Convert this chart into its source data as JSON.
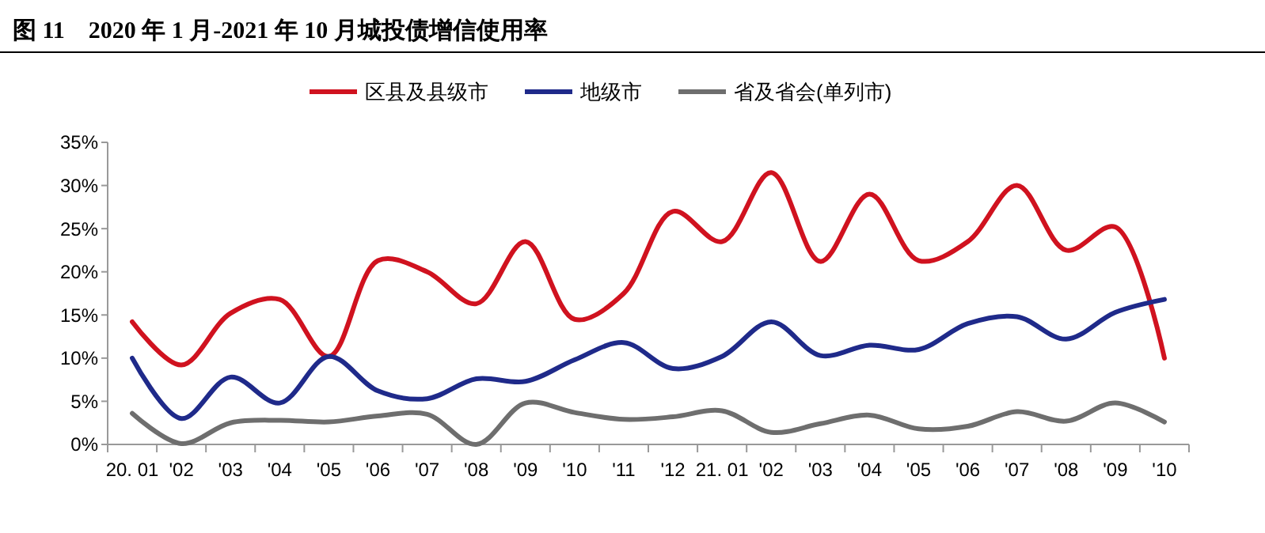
{
  "chart_data": {
    "type": "line",
    "title": "图 11　2020 年 1 月-2021 年 10 月城投债增信使用率",
    "categories": [
      "20. 01",
      "'02",
      "'03",
      "'04",
      "'05",
      "'06",
      "'07",
      "'08",
      "'09",
      "'10",
      "'11",
      "'12",
      "21. 01",
      "'02",
      "'03",
      "'04",
      "'05",
      "'06",
      "'07",
      "'08",
      "'09",
      "'10"
    ],
    "series": [
      {
        "name": "区县及县级市",
        "color": "#d0121f",
        "values": [
          14.2,
          9.2,
          15.2,
          16.8,
          10.2,
          21.3,
          20,
          16.3,
          23.5,
          14.5,
          17.5,
          27,
          23.5,
          31.5,
          21.2,
          29,
          21.3,
          23.5,
          30,
          22.5,
          25.2,
          10
        ]
      },
      {
        "name": "地级市",
        "color": "#1f2a8a",
        "values": [
          10,
          3,
          7.8,
          4.8,
          10.2,
          6.2,
          5.3,
          7.6,
          7.3,
          9.8,
          11.8,
          8.8,
          10.2,
          14.2,
          10.3,
          11.5,
          11,
          14,
          14.8,
          12.2,
          15.3,
          16.8
        ]
      },
      {
        "name": "省及省会(单列市)",
        "color": "#6e6e6e",
        "values": [
          3.6,
          0.1,
          2.5,
          2.8,
          2.6,
          3.3,
          3.5,
          0,
          4.8,
          3.7,
          2.9,
          3.2,
          3.9,
          1.4,
          2.4,
          3.4,
          1.8,
          2.1,
          3.8,
          2.7,
          4.8,
          2.6
        ]
      }
    ],
    "ylim": [
      0,
      35
    ],
    "yticks": [
      {
        "value": 0,
        "label": "0%"
      },
      {
        "value": 5,
        "label": "5%"
      },
      {
        "value": 10,
        "label": "10%"
      },
      {
        "value": 15,
        "label": "15%"
      },
      {
        "value": 20,
        "label": "20%"
      },
      {
        "value": 25,
        "label": "25%"
      },
      {
        "value": 30,
        "label": "30%"
      },
      {
        "value": 35,
        "label": "35%"
      }
    ],
    "legend": "top",
    "grid": false
  }
}
